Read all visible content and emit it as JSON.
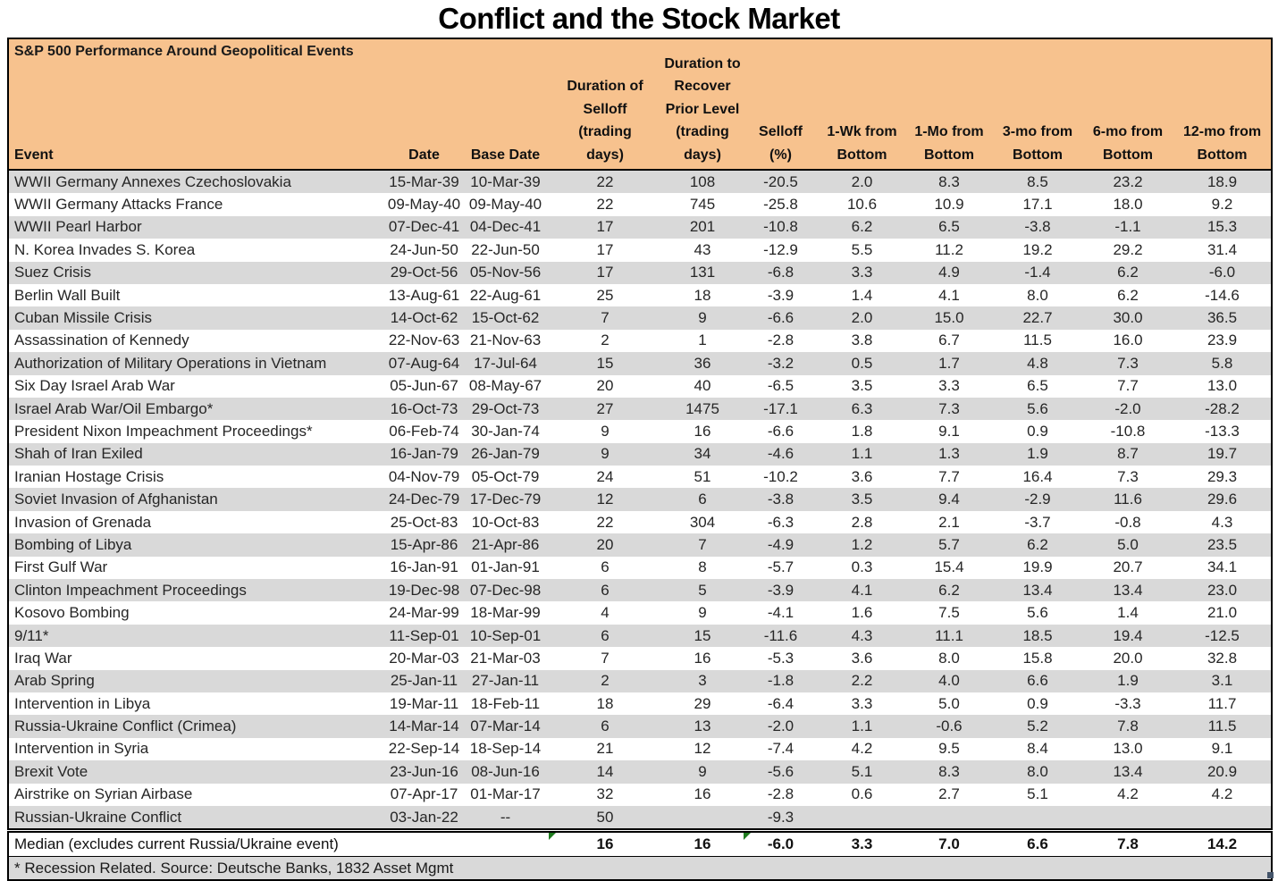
{
  "chart_data": {
    "type": "table",
    "title": "Conflict and the Stock Market",
    "subtitle": "S&P 500 Performance Around Geopolitical Events",
    "columns": [
      "Event",
      "Date",
      "Base Date",
      "Duration of Selloff (trading days)",
      "Duration to Recover Prior Level (trading days)",
      "Selloff (%)",
      "1-Wk from Bottom",
      "1-Mo from Bottom",
      "3-mo from Bottom",
      "6-mo from Bottom",
      "12-mo from Bottom"
    ],
    "rows": [
      [
        "WWII Germany Annexes Czechoslovakia",
        "15-Mar-39",
        "10-Mar-39",
        "22",
        "108",
        "-20.5",
        "2.0",
        "8.3",
        "8.5",
        "23.2",
        "18.9"
      ],
      [
        "WWII Germany Attacks France",
        "09-May-40",
        "09-May-40",
        "22",
        "745",
        "-25.8",
        "10.6",
        "10.9",
        "17.1",
        "18.0",
        "9.2"
      ],
      [
        "WWII Pearl Harbor",
        "07-Dec-41",
        "04-Dec-41",
        "17",
        "201",
        "-10.8",
        "6.2",
        "6.5",
        "-3.8",
        "-1.1",
        "15.3"
      ],
      [
        "N. Korea Invades S. Korea",
        "24-Jun-50",
        "22-Jun-50",
        "17",
        "43",
        "-12.9",
        "5.5",
        "11.2",
        "19.2",
        "29.2",
        "31.4"
      ],
      [
        "Suez Crisis",
        "29-Oct-56",
        "05-Nov-56",
        "17",
        "131",
        "-6.8",
        "3.3",
        "4.9",
        "-1.4",
        "6.2",
        "-6.0"
      ],
      [
        "Berlin Wall Built",
        "13-Aug-61",
        "22-Aug-61",
        "25",
        "18",
        "-3.9",
        "1.4",
        "4.1",
        "8.0",
        "6.2",
        "-14.6"
      ],
      [
        "Cuban Missile Crisis",
        "14-Oct-62",
        "15-Oct-62",
        "7",
        "9",
        "-6.6",
        "2.0",
        "15.0",
        "22.7",
        "30.0",
        "36.5"
      ],
      [
        "Assassination of Kennedy",
        "22-Nov-63",
        "21-Nov-63",
        "2",
        "1",
        "-2.8",
        "3.8",
        "6.7",
        "11.5",
        "16.0",
        "23.9"
      ],
      [
        "Authorization of Military Operations in Vietnam",
        "07-Aug-64",
        "17-Jul-64",
        "15",
        "36",
        "-3.2",
        "0.5",
        "1.7",
        "4.8",
        "7.3",
        "5.8"
      ],
      [
        "Six Day Israel Arab War",
        "05-Jun-67",
        "08-May-67",
        "20",
        "40",
        "-6.5",
        "3.5",
        "3.3",
        "6.5",
        "7.7",
        "13.0"
      ],
      [
        "Israel Arab War/Oil Embargo*",
        "16-Oct-73",
        "29-Oct-73",
        "27",
        "1475",
        "-17.1",
        "6.3",
        "7.3",
        "5.6",
        "-2.0",
        "-28.2"
      ],
      [
        "President Nixon Impeachment Proceedings*",
        "06-Feb-74",
        "30-Jan-74",
        "9",
        "16",
        "-6.6",
        "1.8",
        "9.1",
        "0.9",
        "-10.8",
        "-13.3"
      ],
      [
        "Shah of Iran Exiled",
        "16-Jan-79",
        "26-Jan-79",
        "9",
        "34",
        "-4.6",
        "1.1",
        "1.3",
        "1.9",
        "8.7",
        "19.7"
      ],
      [
        "Iranian Hostage Crisis",
        "04-Nov-79",
        "05-Oct-79",
        "24",
        "51",
        "-10.2",
        "3.6",
        "7.7",
        "16.4",
        "7.3",
        "29.3"
      ],
      [
        "Soviet Invasion of Afghanistan",
        "24-Dec-79",
        "17-Dec-79",
        "12",
        "6",
        "-3.8",
        "3.5",
        "9.4",
        "-2.9",
        "11.6",
        "29.6"
      ],
      [
        "Invasion of Grenada",
        "25-Oct-83",
        "10-Oct-83",
        "22",
        "304",
        "-6.3",
        "2.8",
        "2.1",
        "-3.7",
        "-0.8",
        "4.3"
      ],
      [
        "Bombing of Libya",
        "15-Apr-86",
        "21-Apr-86",
        "20",
        "7",
        "-4.9",
        "1.2",
        "5.7",
        "6.2",
        "5.0",
        "23.5"
      ],
      [
        "First Gulf War",
        "16-Jan-91",
        "01-Jan-91",
        "6",
        "8",
        "-5.7",
        "0.3",
        "15.4",
        "19.9",
        "20.7",
        "34.1"
      ],
      [
        "Clinton Impeachment Proceedings",
        "19-Dec-98",
        "07-Dec-98",
        "6",
        "5",
        "-3.9",
        "4.1",
        "6.2",
        "13.4",
        "13.4",
        "23.0"
      ],
      [
        "Kosovo Bombing",
        "24-Mar-99",
        "18-Mar-99",
        "4",
        "9",
        "-4.1",
        "1.6",
        "7.5",
        "5.6",
        "1.4",
        "21.0"
      ],
      [
        "9/11*",
        "11-Sep-01",
        "10-Sep-01",
        "6",
        "15",
        "-11.6",
        "4.3",
        "11.1",
        "18.5",
        "19.4",
        "-12.5"
      ],
      [
        "Iraq War",
        "20-Mar-03",
        "21-Mar-03",
        "7",
        "16",
        "-5.3",
        "3.6",
        "8.0",
        "15.8",
        "20.0",
        "32.8"
      ],
      [
        "Arab Spring",
        "25-Jan-11",
        "27-Jan-11",
        "2",
        "3",
        "-1.8",
        "2.2",
        "4.0",
        "6.6",
        "1.9",
        "3.1"
      ],
      [
        "Intervention in Libya",
        "19-Mar-11",
        "18-Feb-11",
        "18",
        "29",
        "-6.4",
        "3.3",
        "5.0",
        "0.9",
        "-3.3",
        "11.7"
      ],
      [
        "Russia-Ukraine Conflict (Crimea)",
        "14-Mar-14",
        "07-Mar-14",
        "6",
        "13",
        "-2.0",
        "1.1",
        "-0.6",
        "5.2",
        "7.8",
        "11.5"
      ],
      [
        "Intervention in Syria",
        "22-Sep-14",
        "18-Sep-14",
        "21",
        "12",
        "-7.4",
        "4.2",
        "9.5",
        "8.4",
        "13.0",
        "9.1"
      ],
      [
        "Brexit Vote",
        "23-Jun-16",
        "08-Jun-16",
        "14",
        "9",
        "-5.6",
        "5.1",
        "8.3",
        "8.0",
        "13.4",
        "20.9"
      ],
      [
        "Airstrike on Syrian Airbase",
        "07-Apr-17",
        "01-Mar-17",
        "32",
        "16",
        "-2.8",
        "0.6",
        "2.7",
        "5.1",
        "4.2",
        "4.2"
      ],
      [
        "Russian-Ukraine Conflict",
        "03-Jan-22",
        "--",
        "50",
        "",
        "-9.3",
        "",
        "",
        "",
        "",
        ""
      ]
    ],
    "median_row": {
      "label": "Median (excludes current Russia/Ukraine event)",
      "values": [
        "",
        "",
        "16",
        "16",
        "-6.0",
        "3.3",
        "7.0",
        "6.6",
        "7.8",
        "14.2"
      ]
    },
    "footnote": "* Recession Related. Source: Deutsche Banks, 1832 Asset Mgmt",
    "layout_hints": {
      "row_striping": "alternating gray/white starting gray",
      "flagged_median_cells": [
        "Duration of Selloff (trading days)",
        "Selloff (%)"
      ]
    }
  },
  "header": {
    "labels_display": [
      "Event",
      "Date",
      "Base Date",
      "Duration of\nSelloff\n(trading\ndays)",
      "Duration to\nRecover\nPrior Level\n(trading\ndays)",
      "Selloff\n(%)",
      "1-Wk from\nBottom",
      "1-Mo from\nBottom",
      "3-mo from\nBottom",
      "6-mo from\nBottom",
      "12-mo from\nBottom"
    ]
  },
  "icons": {
    "flag": "excel-cell-error-flag",
    "fill_handle": "excel-fill-handle"
  },
  "colors": {
    "header_bg": "#F7C28E",
    "row_stripe": "#D9D9D9",
    "row_alt": "#FFFFFF",
    "border": "#000000",
    "flag_green": "#1E7B1E",
    "fill_handle_blue": "#44546A"
  }
}
